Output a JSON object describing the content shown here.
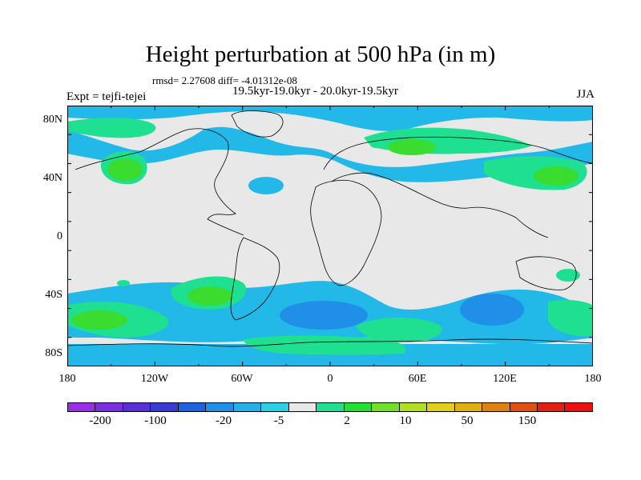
{
  "title": "Height perturbation at 500 hPa (in m)",
  "stats": "rmsd= 2.27608 diff= -4.01312e-08",
  "period": "19.5kyr-19.0kyr - 20.0kyr-19.5kyr",
  "experiment": "Expt = tejfi-tejei",
  "season": "JJA",
  "lat_ticks": [
    "80N",
    "40N",
    "0",
    "40S",
    "80S"
  ],
  "lon_ticks": [
    "180",
    "120W",
    "60W",
    "0",
    "60E",
    "120E",
    "180"
  ],
  "colorbar": {
    "colors": [
      "#9a2ee8",
      "#7a2fe0",
      "#5a2fd8",
      "#3a3ad6",
      "#1f62e0",
      "#1f8fe8",
      "#22b1e8",
      "#2ad0e8",
      "#e8e8e8",
      "#1ee090",
      "#22e030",
      "#70e028",
      "#b0e020",
      "#e0d018",
      "#e0b010",
      "#e08010",
      "#e05010",
      "#e02010",
      "#ee1010"
    ],
    "labels": [
      "-200",
      "-100",
      "-20",
      "-5",
      "2",
      "10",
      "50",
      "150"
    ]
  },
  "colors": {
    "neutral": "#e8e8e8",
    "negative": "#22b8e8",
    "negative_strong": "#1f8fe8",
    "positive": "#1ee090",
    "positive_strong": "#3bdc30"
  }
}
